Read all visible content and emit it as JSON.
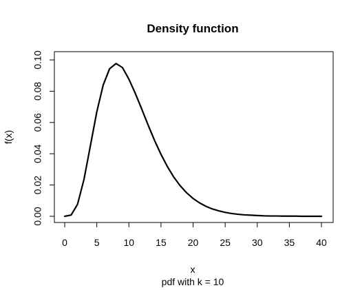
{
  "chart_data": {
    "type": "line",
    "title": "Density function",
    "xlabel": "x",
    "subtitle": "pdf with k = 10",
    "ylabel": "f(x)",
    "xlim": [
      0,
      40
    ],
    "ylim": [
      0,
      0.1
    ],
    "x_ticks": [
      0,
      5,
      10,
      15,
      20,
      25,
      30,
      35,
      40
    ],
    "x_tick_labels": [
      "0",
      "5",
      "10",
      "15",
      "20",
      "25",
      "30",
      "35",
      "40"
    ],
    "y_ticks": [
      0,
      0.02,
      0.04,
      0.06,
      0.08,
      0.1
    ],
    "y_tick_labels": [
      "0.00",
      "0.02",
      "0.04",
      "0.06",
      "0.08",
      "0.10"
    ],
    "grid": false,
    "legend": "none",
    "series": [
      {
        "x": [
          0,
          1,
          2,
          3,
          4,
          5,
          6,
          7,
          8,
          9,
          10,
          11,
          12,
          13,
          14,
          15,
          16,
          17,
          18,
          19,
          20,
          21,
          22,
          23,
          24,
          25,
          26,
          27,
          28,
          29,
          30,
          31,
          32,
          33,
          34,
          35,
          36,
          37,
          38,
          39,
          40
        ],
        "values": [
          0.0,
          0.0008,
          0.0077,
          0.0235,
          0.0451,
          0.0668,
          0.084,
          0.0944,
          0.0977,
          0.0951,
          0.0877,
          0.0786,
          0.0686,
          0.0583,
          0.0485,
          0.0396,
          0.0318,
          0.025,
          0.0195,
          0.015,
          0.0114,
          0.0086,
          0.0064,
          0.0047,
          0.0035,
          0.0025,
          0.0018,
          0.0013,
          0.0009,
          0.0007,
          0.0005,
          0.0003,
          0.0002,
          0.0002,
          0.0001,
          0.0001,
          0.0001,
          0.0,
          0.0,
          0.0,
          0.0
        ]
      }
    ],
    "line_color": "#000000"
  }
}
